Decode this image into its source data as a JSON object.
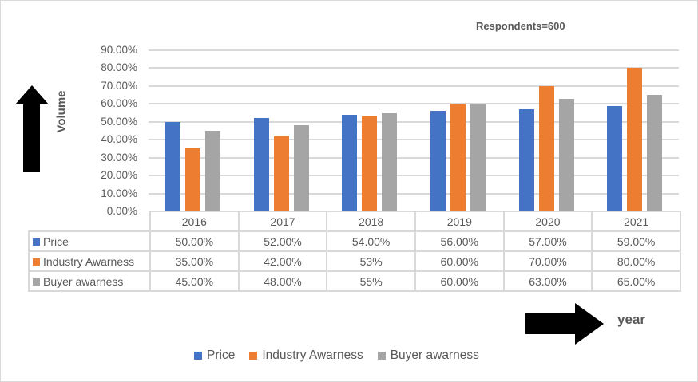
{
  "chart_data": {
    "type": "bar",
    "title": "Respondents=600",
    "xlabel": "year",
    "ylabel": "Volume",
    "ylim": [
      0,
      0.9
    ],
    "yticks": [
      "90.00%",
      "80.00%",
      "70.00%",
      "60.00%",
      "50.00%",
      "40.00%",
      "30.00%",
      "20.00%",
      "10.00%",
      "0.00%"
    ],
    "grid": true,
    "legend_position": "bottom",
    "categories": [
      "2016",
      "2017",
      "2018",
      "2019",
      "2020",
      "2021"
    ],
    "series": [
      {
        "name": "Price",
        "color": "#4472C4",
        "values": [
          0.5,
          0.52,
          0.54,
          0.56,
          0.57,
          0.59
        ],
        "labels": [
          "50.00%",
          "52.00%",
          "54.00%",
          "56.00%",
          "57.00%",
          "59.00%"
        ]
      },
      {
        "name": "Industry Awarness",
        "color": "#ED7D31",
        "values": [
          0.35,
          0.42,
          0.53,
          0.6,
          0.7,
          0.8
        ],
        "labels": [
          "35.00%",
          "42.00%",
          "53%",
          "60.00%",
          "70.00%",
          "80.00%"
        ]
      },
      {
        "name": "Buyer awarness",
        "color": "#A5A5A5",
        "values": [
          0.45,
          0.48,
          0.55,
          0.6,
          0.63,
          0.65
        ],
        "labels": [
          "45.00%",
          "48.00%",
          "55%",
          "60.00%",
          "63.00%",
          "65.00%"
        ]
      }
    ],
    "data_table": true
  },
  "annotations": {
    "up_arrow": "up-arrow",
    "right_arrow": "right-arrow"
  }
}
